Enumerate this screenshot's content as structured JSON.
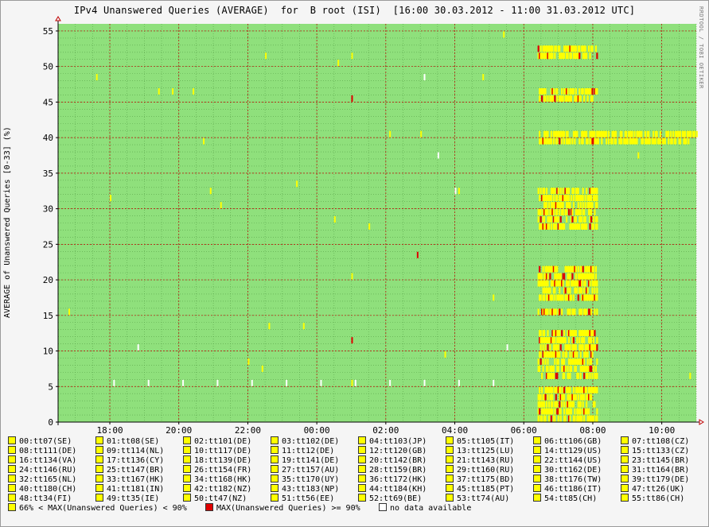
{
  "title": "IPv4 Unanswered Queries (AVERAGE)  for  B root (ISI)  [16:00 30.03.2012 - 11:00 31.03.2012 UTC]",
  "credit": "RRDTOOL / TOBI OETIKER",
  "colors": {
    "background": "#8fe07c",
    "grid_major": "#c00000",
    "grid_minor": "#5aa34a",
    "mid": "#ffff00",
    "high": "#e00000",
    "none": "#ffffff"
  },
  "chart_data": {
    "type": "heatmap",
    "title": "IPv4 Unanswered Queries (AVERAGE)  for  B root (ISI)  [16:00 30.03.2012 - 11:00 31.03.2012 UTC]",
    "ylabel": "AVERAGE of Unanswered Queries [0-33] (%)",
    "xlabel": "",
    "x_ticks": [
      "18:00",
      "20:00",
      "22:00",
      "00:00",
      "02:00",
      "04:00",
      "06:00",
      "08:00",
      "10:00"
    ],
    "x_range_hours": [
      16.5,
      35.0
    ],
    "y_ticks": [
      0,
      5,
      10,
      15,
      20,
      25,
      30,
      35,
      40,
      45,
      50,
      55
    ],
    "ylim": [
      0,
      56
    ],
    "grid": true,
    "note": "",
    "dense_block": {
      "x_start": 30.4,
      "x_end": 32.1,
      "rows": [
        0,
        1,
        2,
        3,
        4,
        6,
        7,
        8,
        9,
        10,
        11,
        12,
        15,
        17,
        18,
        19,
        20,
        21,
        27,
        28,
        29,
        30,
        31,
        32,
        39,
        40,
        45,
        46,
        51,
        52
      ]
    },
    "extended_rows": [
      {
        "y": 39,
        "x_start": 32.1,
        "x_end": 34.8
      },
      {
        "y": 40,
        "x_start": 32.1,
        "x_end": 35.0
      }
    ],
    "scattered_marks": [
      {
        "x": 19.4,
        "y": 46,
        "level": "mid"
      },
      {
        "x": 19.8,
        "y": 46,
        "level": "mid"
      },
      {
        "x": 20.4,
        "y": 46,
        "level": "mid"
      },
      {
        "x": 20.7,
        "y": 39,
        "level": "mid"
      },
      {
        "x": 18.0,
        "y": 31,
        "level": "mid"
      },
      {
        "x": 20.9,
        "y": 32,
        "level": "mid"
      },
      {
        "x": 22.5,
        "y": 51,
        "level": "mid"
      },
      {
        "x": 22.6,
        "y": 13,
        "level": "mid"
      },
      {
        "x": 22.0,
        "y": 8,
        "level": "mid"
      },
      {
        "x": 22.4,
        "y": 7,
        "level": "mid"
      },
      {
        "x": 23.6,
        "y": 13,
        "level": "mid"
      },
      {
        "x": 24.6,
        "y": 50,
        "level": "mid"
      },
      {
        "x": 24.5,
        "y": 28,
        "level": "mid"
      },
      {
        "x": 25.0,
        "y": 51,
        "level": "mid"
      },
      {
        "x": 25.0,
        "y": 45,
        "level": "high"
      },
      {
        "x": 25.0,
        "y": 11,
        "level": "high"
      },
      {
        "x": 25.0,
        "y": 20,
        "level": "mid"
      },
      {
        "x": 25.0,
        "y": 5,
        "level": "mid"
      },
      {
        "x": 26.1,
        "y": 40,
        "level": "mid"
      },
      {
        "x": 26.9,
        "y": 23,
        "level": "high"
      },
      {
        "x": 27.0,
        "y": 40,
        "level": "mid"
      },
      {
        "x": 28.1,
        "y": 32,
        "level": "mid"
      },
      {
        "x": 29.4,
        "y": 54,
        "level": "mid"
      },
      {
        "x": 28.8,
        "y": 48,
        "level": "mid"
      },
      {
        "x": 33.3,
        "y": 37,
        "level": "mid"
      },
      {
        "x": 34.8,
        "y": 6,
        "level": "mid"
      },
      {
        "x": 17.6,
        "y": 48,
        "level": "mid"
      },
      {
        "x": 16.8,
        "y": 15,
        "level": "mid"
      },
      {
        "x": 21.2,
        "y": 30,
        "level": "mid"
      },
      {
        "x": 23.4,
        "y": 33,
        "level": "mid"
      },
      {
        "x": 25.5,
        "y": 27,
        "level": "mid"
      },
      {
        "x": 27.7,
        "y": 9,
        "level": "mid"
      },
      {
        "x": 29.1,
        "y": 17,
        "level": "mid"
      }
    ],
    "nodata_marks": [
      {
        "x": 27.5,
        "y": 37
      },
      {
        "x": 28.0,
        "y": 32
      },
      {
        "x": 27.1,
        "y": 48
      },
      {
        "x": 18.8,
        "y": 10
      },
      {
        "x": 29.5,
        "y": 10
      },
      {
        "x": 18.1,
        "y": 5
      },
      {
        "x": 19.1,
        "y": 5
      },
      {
        "x": 20.1,
        "y": 5
      },
      {
        "x": 21.1,
        "y": 5
      },
      {
        "x": 22.1,
        "y": 5
      },
      {
        "x": 23.1,
        "y": 5
      },
      {
        "x": 24.1,
        "y": 5
      },
      {
        "x": 25.1,
        "y": 5
      },
      {
        "x": 26.1,
        "y": 5
      },
      {
        "x": 27.1,
        "y": 5
      },
      {
        "x": 28.1,
        "y": 5
      },
      {
        "x": 29.1,
        "y": 5
      }
    ]
  },
  "legend": {
    "items": [
      "00:tt07(SE)",
      "01:tt08(SE)",
      "02:tt101(DE)",
      "03:tt102(DE)",
      "04:tt103(JP)",
      "05:tt105(IT)",
      "06:tt106(GB)",
      "07:tt108(CZ)",
      "08:tt111(DE)",
      "09:tt114(NL)",
      "10:tt117(DE)",
      "11:tt12(DE)",
      "12:tt120(GB)",
      "13:tt125(LU)",
      "14:tt129(US)",
      "15:tt133(CZ)",
      "16:tt134(VA)",
      "17:tt136(CY)",
      "18:tt139(DE)",
      "19:tt141(DE)",
      "20:tt142(BR)",
      "21:tt143(RU)",
      "22:tt144(US)",
      "23:tt145(BR)",
      "24:tt146(RU)",
      "25:tt147(BR)",
      "26:tt154(FR)",
      "27:tt157(AU)",
      "28:tt159(BR)",
      "29:tt160(RU)",
      "30:tt162(DE)",
      "31:tt164(BR)",
      "32:tt165(NL)",
      "33:tt167(HK)",
      "34:tt168(HK)",
      "35:tt170(UY)",
      "36:tt172(HK)",
      "37:tt175(BD)",
      "38:tt176(TW)",
      "39:tt179(DE)",
      "40:tt180(CH)",
      "41:tt181(IN)",
      "42:tt182(NZ)",
      "43:tt183(NP)",
      "44:tt184(KH)",
      "45:tt185(PT)",
      "46:tt186(IT)",
      "47:tt26(UK)",
      "48:tt34(FI)",
      "49:tt35(IE)",
      "50:tt47(NZ)",
      "51:tt56(EE)",
      "52:tt69(BE)",
      "53:tt74(AU)",
      "54:tt85(CH)",
      "55:tt86(CH)"
    ],
    "key_mid": "66% < MAX(Unanswered Queries) < 90%",
    "key_high": "MAX(Unanswered Queries) >= 90%",
    "key_none": "no data available"
  }
}
